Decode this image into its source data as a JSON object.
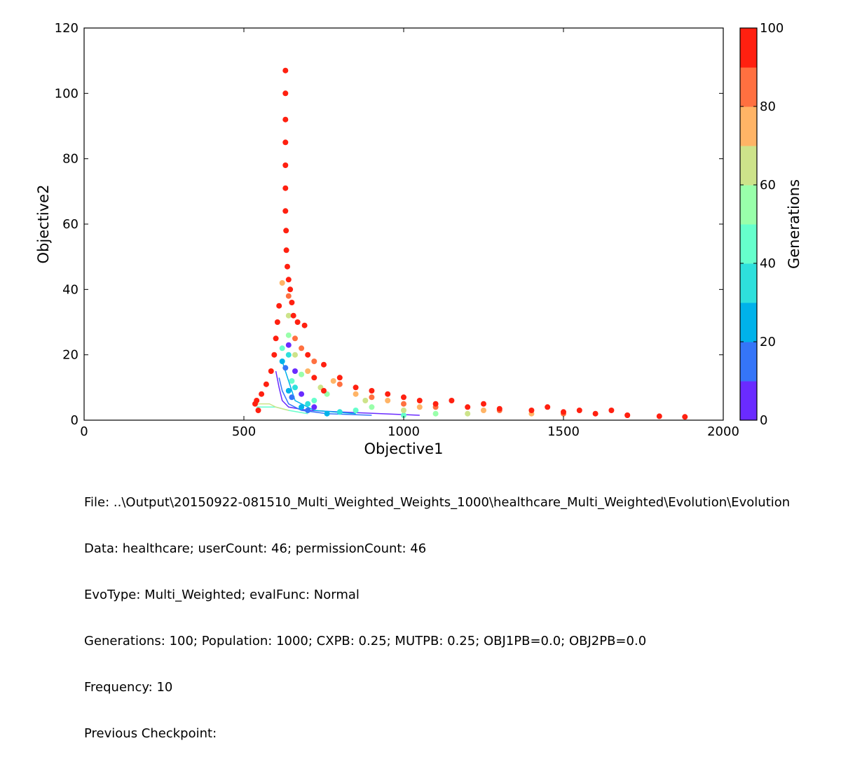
{
  "chart_data": {
    "type": "scatter",
    "xlabel": "Objective1",
    "ylabel": "Objective2",
    "xlim": [
      0,
      2000
    ],
    "ylim": [
      0,
      120
    ],
    "xticks": [
      0,
      500,
      1000,
      1500,
      2000
    ],
    "yticks": [
      0,
      20,
      40,
      60,
      80,
      100,
      120
    ],
    "grid": false,
    "legend": "none",
    "colorbar": {
      "label": "Generations",
      "range": [
        0,
        100
      ],
      "ticks": [
        0,
        20,
        40,
        60,
        80,
        100
      ],
      "bins": [
        {
          "from": 0,
          "to": 10,
          "color": "#6a2bff"
        },
        {
          "from": 10,
          "to": 20,
          "color": "#3575f8"
        },
        {
          "from": 20,
          "to": 30,
          "color": "#00b2ea"
        },
        {
          "from": 30,
          "to": 40,
          "color": "#2ee0dc"
        },
        {
          "from": 40,
          "to": 50,
          "color": "#66ffcc"
        },
        {
          "from": 50,
          "to": 60,
          "color": "#99ffaa"
        },
        {
          "from": 60,
          "to": 70,
          "color": "#cde38a"
        },
        {
          "from": 70,
          "to": 80,
          "color": "#ffb466"
        },
        {
          "from": 80,
          "to": 90,
          "color": "#ff7040"
        },
        {
          "from": 90,
          "to": 100,
          "color": "#ff2010"
        }
      ]
    },
    "points": [
      [
        630,
        107,
        100
      ],
      [
        630,
        100,
        100
      ],
      [
        630,
        92,
        100
      ],
      [
        630,
        85,
        100
      ],
      [
        630,
        78,
        100
      ],
      [
        630,
        71,
        100
      ],
      [
        630,
        64,
        100
      ],
      [
        632,
        58,
        100
      ],
      [
        633,
        52,
        100
      ],
      [
        636,
        47,
        100
      ],
      [
        640,
        43,
        100
      ],
      [
        645,
        40,
        100
      ],
      [
        650,
        36,
        100
      ],
      [
        655,
        32,
        100
      ],
      [
        668,
        30,
        100
      ],
      [
        690,
        29,
        100
      ],
      [
        610,
        35,
        100
      ],
      [
        605,
        30,
        100
      ],
      [
        600,
        25,
        100
      ],
      [
        595,
        20,
        100
      ],
      [
        585,
        15,
        100
      ],
      [
        570,
        11,
        100
      ],
      [
        555,
        8,
        100
      ],
      [
        540,
        6,
        100
      ],
      [
        535,
        5,
        100
      ],
      [
        545,
        3,
        100
      ],
      [
        700,
        20,
        100
      ],
      [
        750,
        17,
        100
      ],
      [
        800,
        13,
        100
      ],
      [
        850,
        10,
        100
      ],
      [
        900,
        9,
        100
      ],
      [
        1000,
        7,
        100
      ],
      [
        1050,
        6,
        100
      ],
      [
        1100,
        5,
        100
      ],
      [
        1200,
        4,
        100
      ],
      [
        1300,
        3.5,
        100
      ],
      [
        1400,
        3,
        100
      ],
      [
        1500,
        2.5,
        100
      ],
      [
        1600,
        2,
        100
      ],
      [
        1700,
        1.5,
        100
      ],
      [
        1800,
        1.2,
        100
      ],
      [
        1880,
        1,
        100
      ],
      [
        1650,
        3,
        100
      ],
      [
        1550,
        3,
        100
      ],
      [
        1450,
        4,
        100
      ],
      [
        1250,
        5,
        100
      ],
      [
        1150,
        6,
        100
      ],
      [
        950,
        8,
        100
      ],
      [
        750,
        9,
        100
      ],
      [
        720,
        13,
        100
      ],
      [
        680,
        22,
        90
      ],
      [
        660,
        25,
        90
      ],
      [
        640,
        38,
        90
      ],
      [
        720,
        18,
        90
      ],
      [
        800,
        11,
        90
      ],
      [
        900,
        7,
        90
      ],
      [
        1000,
        5,
        90
      ],
      [
        1100,
        4,
        90
      ],
      [
        1300,
        3,
        90
      ],
      [
        1500,
        2,
        90
      ],
      [
        1700,
        1.5,
        90
      ],
      [
        620,
        42,
        80
      ],
      [
        700,
        15,
        80
      ],
      [
        780,
        12,
        80
      ],
      [
        850,
        8,
        80
      ],
      [
        950,
        6,
        80
      ],
      [
        1050,
        4,
        80
      ],
      [
        1250,
        3,
        80
      ],
      [
        1400,
        2,
        80
      ],
      [
        640,
        32,
        70
      ],
      [
        660,
        20,
        70
      ],
      [
        740,
        10,
        70
      ],
      [
        880,
        6,
        70
      ],
      [
        1000,
        3,
        70
      ],
      [
        1200,
        2,
        70
      ],
      [
        640,
        26,
        60
      ],
      [
        680,
        14,
        60
      ],
      [
        760,
        8,
        60
      ],
      [
        900,
        4,
        60
      ],
      [
        1100,
        2,
        60
      ],
      [
        620,
        22,
        50
      ],
      [
        650,
        12,
        50
      ],
      [
        720,
        6,
        50
      ],
      [
        850,
        3,
        50
      ],
      [
        1000,
        1.5,
        50
      ],
      [
        640,
        20,
        40
      ],
      [
        660,
        10,
        40
      ],
      [
        700,
        5,
        40
      ],
      [
        800,
        2.5,
        40
      ],
      [
        620,
        18,
        30
      ],
      [
        640,
        9,
        30
      ],
      [
        680,
        4,
        30
      ],
      [
        760,
        2,
        30
      ],
      [
        630,
        16,
        20
      ],
      [
        650,
        7,
        20
      ],
      [
        700,
        3,
        20
      ],
      [
        640,
        23,
        10
      ],
      [
        660,
        15,
        10
      ],
      [
        680,
        8,
        10
      ],
      [
        720,
        4,
        10
      ]
    ],
    "paths": [
      {
        "generation": 5,
        "points": [
          [
            600,
            15
          ],
          [
            610,
            10
          ],
          [
            620,
            6
          ],
          [
            640,
            4
          ],
          [
            700,
            3
          ],
          [
            800,
            2.5
          ],
          [
            1050,
            1.5
          ]
        ]
      },
      {
        "generation": 15,
        "points": [
          [
            610,
            13
          ],
          [
            620,
            9
          ],
          [
            640,
            5
          ],
          [
            680,
            3
          ],
          [
            760,
            2
          ],
          [
            900,
            1.5
          ]
        ]
      },
      {
        "generation": 25,
        "points": [
          [
            620,
            18
          ],
          [
            640,
            12
          ],
          [
            660,
            6
          ],
          [
            720,
            3
          ],
          [
            850,
            2
          ]
        ]
      },
      {
        "generation": 45,
        "points": [
          [
            540,
            4
          ],
          [
            600,
            4
          ],
          [
            640,
            3
          ],
          [
            700,
            2
          ]
        ]
      },
      {
        "generation": 65,
        "points": [
          [
            540,
            5
          ],
          [
            580,
            5
          ],
          [
            600,
            4
          ],
          [
            640,
            3
          ]
        ]
      }
    ]
  },
  "caption": {
    "file": "File: ..\\Output\\20150922-081510_Multi_Weighted_Weights_1000\\healthcare_Multi_Weighted\\Evolution\\Evolution",
    "data": "Data: healthcare; userCount: 46; permissionCount: 46",
    "evotype": "EvoType: Multi_Weighted; evalFunc: Normal",
    "generations": "Generations: 100; Population: 1000; CXPB: 0.25; MUTPB: 0.25; OBJ1PB=0.0; OBJ2PB=0.0",
    "frequency": "Frequency: 10",
    "previous": "Previous Checkpoint:"
  }
}
